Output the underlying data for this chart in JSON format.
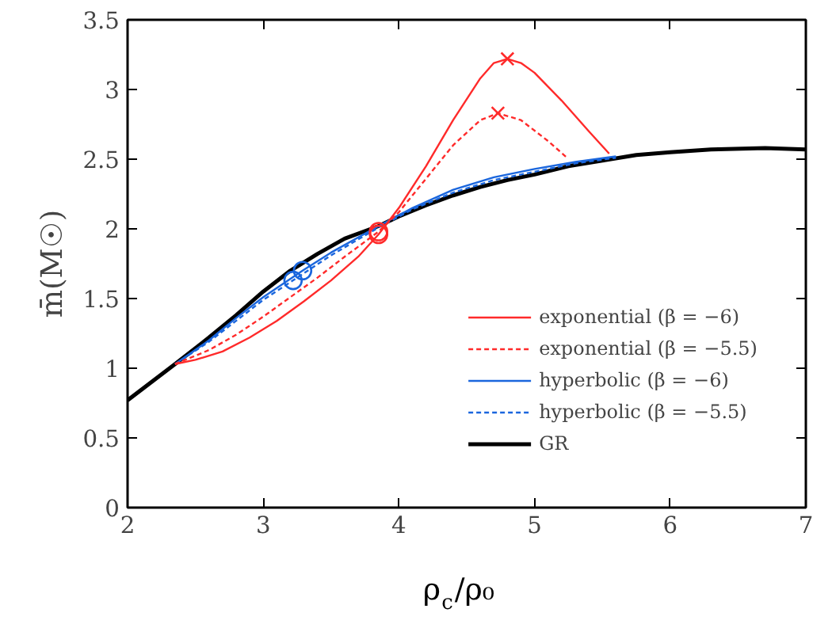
{
  "chart_data": {
    "type": "line",
    "xlabel": "ρ$_{c}$/ρ₀",
    "ylabel": "m̄(M☉)",
    "xlim": [
      2,
      7
    ],
    "ylim": [
      0,
      3.5
    ],
    "xticks": [
      2,
      3,
      4,
      5,
      6,
      7
    ],
    "yticks": [
      0,
      0.5,
      1,
      1.5,
      2,
      2.5,
      3,
      3.5
    ],
    "grid": false,
    "legend": "bottom right",
    "marker": "none",
    "series": [
      {
        "name": "exponential (β = −6)",
        "color": "#ff2a2a",
        "line_style": "solid",
        "x": [
          2.35,
          2.5,
          2.7,
          2.9,
          3.1,
          3.3,
          3.5,
          3.7,
          3.85,
          4.0,
          4.2,
          4.4,
          4.6,
          4.7,
          4.8,
          4.9,
          5.0,
          5.2,
          5.4,
          5.55
        ],
        "values": [
          1.03,
          1.06,
          1.12,
          1.22,
          1.34,
          1.48,
          1.63,
          1.8,
          1.96,
          2.15,
          2.45,
          2.78,
          3.08,
          3.19,
          3.22,
          3.19,
          3.12,
          2.92,
          2.7,
          2.54
        ]
      },
      {
        "name": "exponential (β = −5.5)",
        "color": "#ff2a2a",
        "line_style": "dashed",
        "x": [
          2.35,
          2.6,
          2.8,
          3.0,
          3.2,
          3.4,
          3.6,
          3.85,
          4.0,
          4.2,
          4.4,
          4.6,
          4.73,
          4.9,
          5.1,
          5.24
        ],
        "values": [
          1.03,
          1.13,
          1.24,
          1.37,
          1.51,
          1.65,
          1.8,
          1.98,
          2.12,
          2.36,
          2.6,
          2.78,
          2.83,
          2.78,
          2.63,
          2.51
        ]
      },
      {
        "name": "hyperbolic (β = −6)",
        "color": "#1a66dd",
        "line_style": "solid",
        "x": [
          2.35,
          2.6,
          2.8,
          3.0,
          3.29,
          3.5,
          3.85,
          4.1,
          4.4,
          4.7,
          5.0,
          5.3,
          5.6
        ],
        "values": [
          1.03,
          1.2,
          1.36,
          1.51,
          1.7,
          1.83,
          2.02,
          2.15,
          2.28,
          2.37,
          2.43,
          2.48,
          2.52
        ]
      },
      {
        "name": "hyperbolic (β = −5.5)",
        "color": "#1a66dd",
        "line_style": "dashed",
        "x": [
          2.35,
          2.6,
          2.8,
          3.0,
          3.22,
          3.5,
          3.85,
          4.1,
          4.4,
          4.7,
          5.0,
          5.3,
          5.6
        ],
        "values": [
          1.03,
          1.19,
          1.34,
          1.49,
          1.63,
          1.81,
          2.01,
          2.14,
          2.26,
          2.35,
          2.41,
          2.47,
          2.51
        ]
      },
      {
        "name": "GR",
        "color": "#000000",
        "line_style": "solid",
        "x": [
          2.0,
          2.35,
          2.6,
          2.8,
          3.0,
          3.2,
          3.4,
          3.6,
          3.85,
          4.0,
          4.2,
          4.4,
          4.6,
          4.8,
          5.0,
          5.25,
          5.5,
          5.75,
          6.0,
          6.3,
          6.7,
          7.0
        ],
        "values": [
          0.77,
          1.03,
          1.22,
          1.38,
          1.55,
          1.7,
          1.82,
          1.93,
          2.02,
          2.09,
          2.17,
          2.24,
          2.3,
          2.35,
          2.39,
          2.45,
          2.49,
          2.53,
          2.55,
          2.57,
          2.58,
          2.57
        ]
      },
      {
        "type": "scatter",
        "marker": "circle",
        "color": "#ff2a2a",
        "x": [
          3.85,
          3.85
        ],
        "values": [
          1.96,
          1.98
        ]
      },
      {
        "type": "scatter",
        "marker": "circle",
        "color": "#1a66dd",
        "x": [
          3.22,
          3.29
        ],
        "values": [
          1.63,
          1.7
        ]
      },
      {
        "type": "scatter",
        "marker": "cross",
        "color": "#ff2a2a",
        "x": [
          4.8,
          4.73
        ],
        "values": [
          3.22,
          2.83
        ]
      }
    ]
  }
}
